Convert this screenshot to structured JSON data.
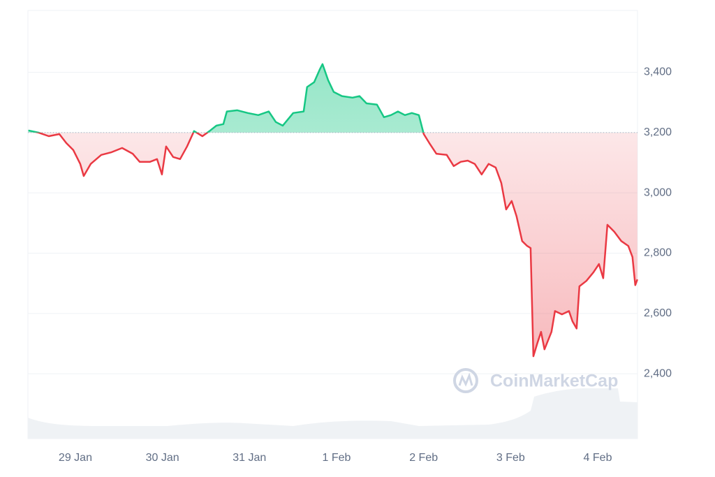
{
  "chart_data": {
    "type": "line",
    "watermark": "CoinMarketCap",
    "x": [
      0.46,
      0.575,
      0.695,
      0.816,
      0.896,
      0.976,
      1.056,
      1.096,
      1.176,
      1.297,
      1.417,
      1.537,
      1.658,
      1.738,
      1.858,
      1.938,
      1.994,
      2.042,
      2.123,
      2.203,
      2.283,
      2.363,
      2.459,
      2.54,
      2.62,
      2.7,
      2.74,
      2.86,
      2.981,
      3.101,
      3.221,
      3.302,
      3.382,
      3.502,
      3.622,
      3.662,
      3.743,
      3.807,
      3.839,
      3.903,
      3.967,
      4.063,
      4.184,
      4.264,
      4.344,
      4.464,
      4.545,
      4.625,
      4.705,
      4.785,
      4.865,
      4.946,
      5.002,
      5.066,
      5.146,
      5.266,
      5.346,
      5.427,
      5.507,
      5.587,
      5.667,
      5.747,
      5.828,
      5.892,
      5.948,
      6.012,
      6.068,
      6.132,
      6.189,
      6.229,
      6.261,
      6.309,
      6.349,
      6.389,
      6.469,
      6.509,
      6.589,
      6.67,
      6.71,
      6.758,
      6.79,
      6.87,
      6.95,
      7.014,
      7.063,
      7.111,
      7.191,
      7.271,
      7.351,
      7.399,
      7.431,
      7.455
    ],
    "values": [
      3207,
      3200,
      3188,
      3195,
      3165,
      3142,
      3096,
      3056,
      3096,
      3126,
      3135,
      3149,
      3130,
      3103,
      3103,
      3112,
      3061,
      3154,
      3119,
      3112,
      3154,
      3205,
      3188,
      3205,
      3223,
      3228,
      3270,
      3274,
      3265,
      3258,
      3270,
      3235,
      3223,
      3265,
      3270,
      3351,
      3367,
      3409,
      3427,
      3374,
      3335,
      3321,
      3316,
      3321,
      3297,
      3293,
      3251,
      3258,
      3270,
      3258,
      3265,
      3258,
      3195,
      3165,
      3130,
      3126,
      3089,
      3103,
      3107,
      3096,
      3061,
      3096,
      3084,
      3033,
      2945,
      2973,
      2922,
      2840,
      2824,
      2817,
      2458,
      2504,
      2539,
      2481,
      2539,
      2608,
      2597,
      2608,
      2574,
      2550,
      2690,
      2708,
      2736,
      2764,
      2717,
      2894,
      2871,
      2840,
      2824,
      2787,
      2694,
      2713
    ],
    "baseline": 3200,
    "up_color": "#16c784",
    "down_color": "#ea3943",
    "xlim": [
      0.455,
      7.457
    ],
    "ylim": [
      2185,
      3605
    ],
    "xticks": [
      {
        "value": 1,
        "label": "29 Jan"
      },
      {
        "value": 2,
        "label": "30 Jan"
      },
      {
        "value": 3,
        "label": "31 Jan"
      },
      {
        "value": 4,
        "label": "1 Feb"
      },
      {
        "value": 5,
        "label": "2 Feb"
      },
      {
        "value": 6,
        "label": "3 Feb"
      },
      {
        "value": 7,
        "label": "4 Feb"
      }
    ],
    "yticks": [
      {
        "value": 2400,
        "label": "2,400"
      },
      {
        "value": 2600,
        "label": "2,600"
      },
      {
        "value": 2800,
        "label": "2,800"
      },
      {
        "value": 3000,
        "label": "3,000"
      },
      {
        "value": 3200,
        "label": "3,200"
      },
      {
        "value": 3400,
        "label": "3,400"
      }
    ],
    "grid": true
  }
}
